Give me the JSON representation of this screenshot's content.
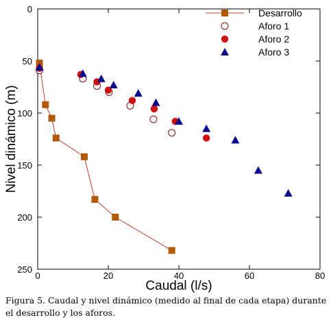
{
  "chart_data": {
    "type": "scatter",
    "xlabel": "Caudal (l/s)",
    "ylabel": "Nivel dinámico (m)",
    "xlim": [
      0,
      80
    ],
    "ylim": [
      0,
      250
    ],
    "y_inverted": true,
    "grid": false,
    "legend_position": "top-right",
    "xticks": [
      "0",
      "20",
      "40",
      "60",
      "80"
    ],
    "yticks": [
      "0",
      "50",
      "100",
      "150",
      "200",
      "250"
    ],
    "series": [
      {
        "name": "Desarrollo",
        "marker": "square",
        "line": true,
        "color": "#b25a0c",
        "line_color": "#c0392b",
        "x": [
          0.5,
          2.2,
          4.0,
          5.2,
          13.2,
          16.2,
          22.0,
          38.0
        ],
        "y": [
          52,
          92,
          105,
          124,
          142,
          183,
          200,
          232
        ]
      },
      {
        "name": "Aforo 1",
        "marker": "circle-open",
        "line": false,
        "color": "#7a1010",
        "x": [
          0.5,
          12.8,
          16.8,
          20.2,
          26.2,
          32.8,
          38.0
        ],
        "y": [
          59,
          67,
          74,
          80,
          93,
          106,
          119
        ]
      },
      {
        "name": "Aforo 2",
        "marker": "circle",
        "line": false,
        "color": "#d01010",
        "x": [
          0.5,
          12.2,
          16.8,
          20.0,
          26.8,
          33.0,
          39.0,
          47.8
        ],
        "y": [
          57,
          63,
          70,
          78,
          88,
          96,
          108,
          124
        ]
      },
      {
        "name": "Aforo 3",
        "marker": "triangle",
        "line": false,
        "color": "#0a0a8c",
        "x": [
          0.5,
          12.8,
          18.0,
          21.5,
          28.5,
          33.5,
          40.0,
          47.8,
          56.0,
          62.5,
          71.0
        ],
        "y": [
          56,
          62,
          67,
          73,
          81,
          90,
          108,
          115,
          126,
          155,
          177
        ]
      }
    ]
  },
  "caption": "Figura 5. Caudal y nivel dinámico (medido al final de cada etapa) durante el desarrollo y los aforos."
}
